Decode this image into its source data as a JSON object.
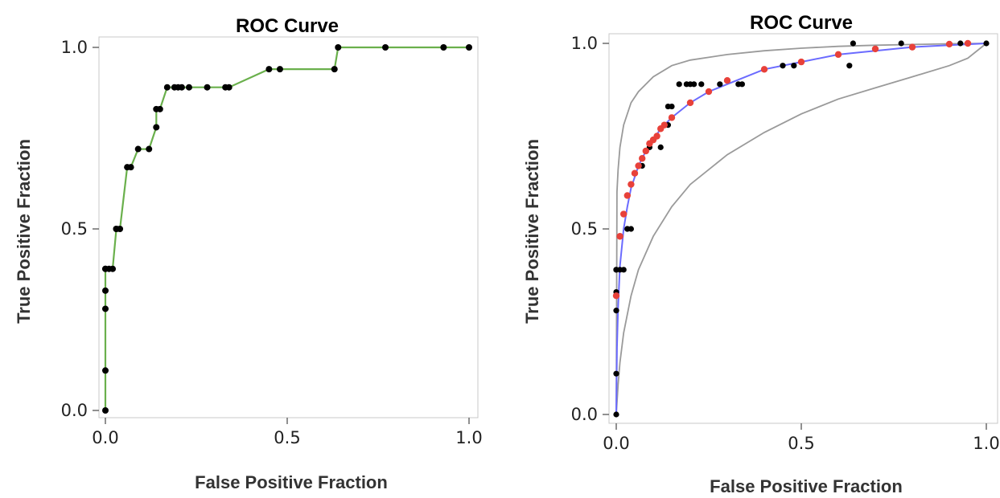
{
  "chart_data": [
    {
      "type": "line",
      "title": "ROC Curve",
      "xlabel": "False Positive Fraction",
      "ylabel": "True Positive Fraction",
      "xlim": [
        -0.02,
        1.02
      ],
      "ylim": [
        -0.02,
        1.02
      ],
      "xticks": [
        "0.0",
        "0.5",
        "1.0"
      ],
      "yticks": [
        "0.0",
        "0.5",
        "1.0"
      ],
      "grid": false,
      "series": [
        {
          "color": "#6ab04c",
          "marker_color": "#000000",
          "x": [
            0.0,
            0.0,
            0.0,
            0.0,
            0.0,
            0.0,
            0.01,
            0.02,
            0.03,
            0.03,
            0.04,
            0.06,
            0.07,
            0.09,
            0.12,
            0.14,
            0.14,
            0.15,
            0.17,
            0.19,
            0.2,
            0.21,
            0.23,
            0.28,
            0.33,
            0.34,
            0.45,
            0.48,
            0.63,
            0.64,
            0.77,
            0.93,
            1.0
          ],
          "y": [
            0.0,
            0.11,
            0.28,
            0.33,
            0.39,
            0.39,
            0.39,
            0.39,
            0.5,
            0.5,
            0.5,
            0.67,
            0.67,
            0.72,
            0.72,
            0.78,
            0.83,
            0.83,
            0.89,
            0.89,
            0.89,
            0.89,
            0.89,
            0.89,
            0.89,
            0.89,
            0.94,
            0.94,
            0.94,
            1.0,
            1.0,
            1.0,
            1.0
          ]
        }
      ]
    },
    {
      "type": "line",
      "title": "ROC Curve",
      "xlabel": "False Positive Fraction",
      "ylabel": "True Positive Fraction",
      "xlim": [
        -0.02,
        1.02
      ],
      "ylim": [
        -0.02,
        1.02
      ],
      "xticks": [
        "0.0",
        "0.5",
        "1.0"
      ],
      "yticks": [
        "0.0",
        "0.5",
        "1.0"
      ],
      "grid": false,
      "fitted_curve": {
        "color": "#6b6bff",
        "x": [
          0.0,
          0.002,
          0.005,
          0.01,
          0.02,
          0.03,
          0.04,
          0.05,
          0.06,
          0.08,
          0.1,
          0.12,
          0.15,
          0.2,
          0.25,
          0.3,
          0.4,
          0.5,
          0.6,
          0.7,
          0.8,
          0.9,
          1.0
        ],
        "y": [
          0.0,
          0.18,
          0.29,
          0.4,
          0.5,
          0.56,
          0.61,
          0.64,
          0.67,
          0.71,
          0.74,
          0.77,
          0.8,
          0.84,
          0.87,
          0.89,
          0.93,
          0.95,
          0.97,
          0.98,
          0.99,
          0.995,
          1.0
        ]
      },
      "upper_band": {
        "color": "#9a9a9a",
        "x": [
          0.0,
          0.002,
          0.005,
          0.01,
          0.02,
          0.04,
          0.06,
          0.1,
          0.15,
          0.2,
          0.3,
          0.4,
          0.5,
          0.6,
          0.7,
          0.8,
          0.9,
          1.0
        ],
        "y": [
          0.0,
          0.6,
          0.66,
          0.72,
          0.78,
          0.84,
          0.87,
          0.91,
          0.94,
          0.955,
          0.97,
          0.98,
          0.987,
          0.992,
          0.995,
          0.997,
          0.999,
          1.0
        ]
      },
      "lower_band": {
        "color": "#9a9a9a",
        "x": [
          0.0,
          0.005,
          0.01,
          0.02,
          0.04,
          0.06,
          0.1,
          0.15,
          0.2,
          0.3,
          0.4,
          0.5,
          0.6,
          0.7,
          0.8,
          0.9,
          0.95,
          1.0
        ],
        "y": [
          0.0,
          0.08,
          0.14,
          0.22,
          0.32,
          0.39,
          0.48,
          0.56,
          0.62,
          0.7,
          0.76,
          0.81,
          0.85,
          0.88,
          0.91,
          0.94,
          0.96,
          1.0
        ]
      },
      "observed_points": {
        "color": "#000000",
        "x": [
          0.0,
          0.0,
          0.0,
          0.0,
          0.0,
          0.0,
          0.01,
          0.02,
          0.03,
          0.03,
          0.04,
          0.06,
          0.07,
          0.09,
          0.12,
          0.14,
          0.14,
          0.15,
          0.17,
          0.19,
          0.2,
          0.21,
          0.23,
          0.28,
          0.33,
          0.34,
          0.45,
          0.48,
          0.63,
          0.64,
          0.77,
          0.93,
          1.0
        ],
        "y": [
          0.0,
          0.11,
          0.28,
          0.33,
          0.39,
          0.39,
          0.39,
          0.39,
          0.5,
          0.5,
          0.5,
          0.67,
          0.67,
          0.72,
          0.72,
          0.78,
          0.83,
          0.83,
          0.89,
          0.89,
          0.89,
          0.89,
          0.89,
          0.89,
          0.89,
          0.89,
          0.94,
          0.94,
          0.94,
          1.0,
          1.0,
          1.0,
          1.0
        ]
      },
      "fitted_points": {
        "color": "#e8413a",
        "x": [
          0.0,
          0.01,
          0.02,
          0.03,
          0.04,
          0.05,
          0.06,
          0.07,
          0.08,
          0.09,
          0.1,
          0.11,
          0.12,
          0.13,
          0.15,
          0.2,
          0.25,
          0.3,
          0.4,
          0.5,
          0.6,
          0.7,
          0.8,
          0.9,
          0.95
        ],
        "y": [
          0.32,
          0.48,
          0.54,
          0.59,
          0.62,
          0.65,
          0.67,
          0.69,
          0.71,
          0.73,
          0.74,
          0.75,
          0.77,
          0.78,
          0.8,
          0.84,
          0.87,
          0.9,
          0.93,
          0.95,
          0.97,
          0.985,
          0.99,
          0.998,
          1.0
        ]
      }
    }
  ]
}
